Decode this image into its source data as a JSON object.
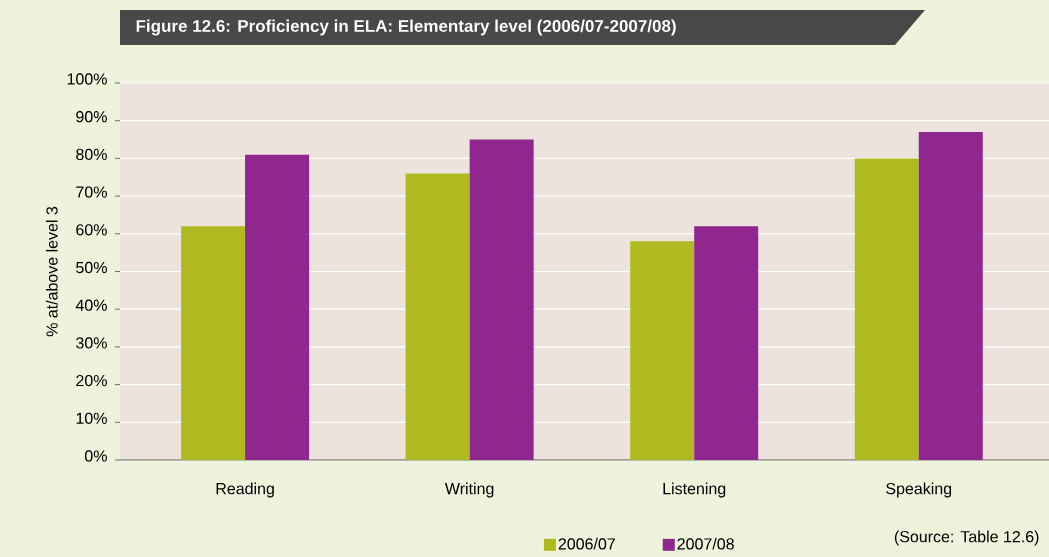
{
  "chart_data": {
    "type": "bar",
    "title": "Figure 12.6: Proficiency in ELA: Elementary level (2006/07-2007/08)",
    "ylabel": "% at/above level 3",
    "categories": [
      "Reading",
      "Writing",
      "Listening",
      "Speaking"
    ],
    "series": [
      {
        "name": "2006/07",
        "color": "#b0b920",
        "values": [
          62,
          76,
          58,
          80
        ]
      },
      {
        "name": "2007/08",
        "color": "#90278e",
        "values": [
          81,
          85,
          62,
          87
        ]
      }
    ],
    "ylim": [
      0,
      100
    ],
    "yticks": [
      {
        "value": 0,
        "label": "0%"
      },
      {
        "value": 10,
        "label": "10%"
      },
      {
        "value": 20,
        "label": "20%"
      },
      {
        "value": 30,
        "label": "30%"
      },
      {
        "value": 40,
        "label": "40%"
      },
      {
        "value": 50,
        "label": "50%"
      },
      {
        "value": 60,
        "label": "60%"
      },
      {
        "value": 70,
        "label": "70%"
      },
      {
        "value": 80,
        "label": "80%"
      },
      {
        "value": 90,
        "label": "90%"
      },
      {
        "value": 100,
        "label": "100%"
      }
    ],
    "grid": "y",
    "legend": "bottom",
    "annotations": [
      "(Source: Table 12.6)"
    ]
  }
}
